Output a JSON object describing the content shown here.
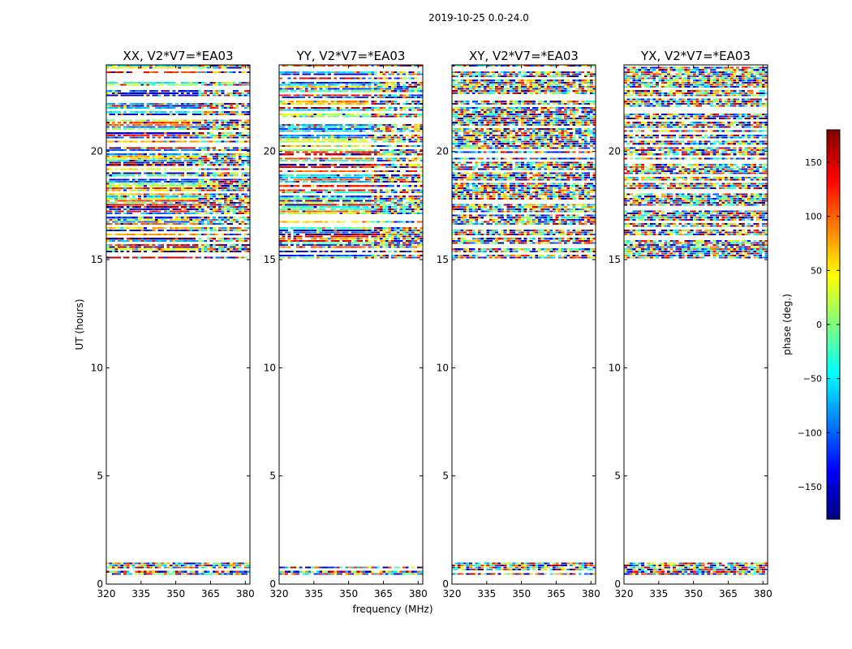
{
  "figure": {
    "suptitle": "2019-10-25 0.0-24.0",
    "xlabel": "frequency (MHz)",
    "ylabel": "UT (hours)"
  },
  "colorbar": {
    "label": "phase (deg.)",
    "range": [
      -180,
      180
    ],
    "ticks": [
      -150,
      -100,
      -50,
      0,
      50,
      100,
      150
    ],
    "tick_labels": [
      "−150",
      "−100",
      "−50",
      "0",
      "50",
      "100",
      "150"
    ],
    "colormap": "jet",
    "colors": [
      "#00007f",
      "#0000ff",
      "#007fff",
      "#00ffff",
      "#7fff7f",
      "#ffff00",
      "#ff7f00",
      "#ff0000",
      "#7f0000"
    ]
  },
  "chart_data": [
    {
      "type": "heatmap",
      "title": "XX, V2*V7=*EA03",
      "x": {
        "lim": [
          320,
          382
        ],
        "ticks": [
          320,
          335,
          350,
          365,
          380
        ]
      },
      "y": {
        "lim": [
          0,
          24
        ],
        "ticks": [
          0,
          5,
          10,
          15,
          20
        ]
      },
      "z_label": "phase (deg.)",
      "data_intervals_hours": [
        [
          0.4,
          1.0
        ],
        [
          15.0,
          24.0
        ]
      ],
      "structure": "coherent"
    },
    {
      "type": "heatmap",
      "title": "YY, V2*V7=*EA03",
      "x": {
        "lim": [
          320,
          382
        ],
        "ticks": [
          320,
          335,
          350,
          365,
          380
        ]
      },
      "y": {
        "lim": [
          0,
          24
        ],
        "ticks": [
          0,
          5,
          10,
          15,
          20
        ]
      },
      "z_label": "phase (deg.)",
      "data_intervals_hours": [
        [
          0.4,
          1.0
        ],
        [
          15.0,
          24.0
        ]
      ],
      "structure": "coherent"
    },
    {
      "type": "heatmap",
      "title": "XY, V2*V7=*EA03",
      "x": {
        "lim": [
          320,
          382
        ],
        "ticks": [
          320,
          335,
          350,
          365,
          380
        ]
      },
      "y": {
        "lim": [
          0,
          24
        ],
        "ticks": [
          0,
          5,
          10,
          15,
          20
        ]
      },
      "z_label": "phase (deg.)",
      "data_intervals_hours": [
        [
          0.4,
          1.0
        ],
        [
          15.0,
          24.0
        ]
      ],
      "structure": "noise"
    },
    {
      "type": "heatmap",
      "title": "YX, V2*V7=*EA03",
      "x": {
        "lim": [
          320,
          382
        ],
        "ticks": [
          320,
          335,
          350,
          365,
          380
        ]
      },
      "y": {
        "lim": [
          0,
          24
        ],
        "ticks": [
          0,
          5,
          10,
          15,
          20
        ]
      },
      "z_label": "phase (deg.)",
      "data_intervals_hours": [
        [
          0.4,
          1.0
        ],
        [
          15.0,
          24.0
        ]
      ],
      "structure": "noise"
    }
  ]
}
